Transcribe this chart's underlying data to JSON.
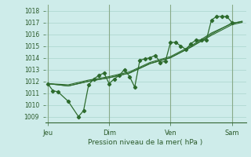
{
  "xlabel": "Pression niveau de la mer( hPa )",
  "background_color": "#ceecea",
  "grid_color": "#aad4cc",
  "line_color": "#2d6b2d",
  "vline_color": "#88aa88",
  "ylim": [
    1008.5,
    1018.5
  ],
  "yticks": [
    1009,
    1010,
    1011,
    1012,
    1013,
    1014,
    1015,
    1016,
    1017,
    1018
  ],
  "day_labels": [
    "Jeu",
    "Dim",
    "Ven",
    "Sam"
  ],
  "day_positions": [
    0,
    48,
    96,
    144
  ],
  "xlim": [
    -2,
    155
  ],
  "series": [
    [
      0,
      1011.8,
      4,
      1011.2,
      8,
      1011.1,
      16,
      1010.3,
      24,
      1009.0,
      28,
      1009.5,
      32,
      1011.7,
      36,
      1012.2,
      40,
      1012.5,
      44,
      1012.7,
      48,
      1011.8,
      52,
      1012.2,
      56,
      1012.5,
      60,
      1013.0,
      64,
      1012.4,
      68,
      1011.5,
      72,
      1013.8,
      76,
      1013.9,
      80,
      1014.0,
      84,
      1014.2,
      88,
      1013.6,
      92,
      1013.7,
      96,
      1015.3,
      100,
      1015.3,
      104,
      1015.0,
      108,
      1014.7,
      112,
      1015.2,
      116,
      1015.5,
      120,
      1015.5,
      124,
      1015.5,
      128,
      1017.2,
      132,
      1017.5,
      136,
      1017.5,
      140,
      1017.5,
      144,
      1017.0
    ],
    [
      0,
      1011.8,
      16,
      1011.6,
      32,
      1012.0,
      48,
      1012.3,
      64,
      1012.7,
      80,
      1013.5,
      96,
      1014.0,
      112,
      1014.9,
      128,
      1015.9,
      144,
      1016.8,
      152,
      1017.0
    ],
    [
      0,
      1011.8,
      16,
      1011.7,
      32,
      1012.1,
      48,
      1012.4,
      64,
      1012.8,
      80,
      1013.6,
      96,
      1014.1,
      112,
      1015.0,
      128,
      1016.1,
      144,
      1016.9,
      152,
      1017.1
    ],
    [
      0,
      1011.8,
      16,
      1011.6,
      32,
      1012.0,
      48,
      1012.3,
      64,
      1012.7,
      80,
      1013.5,
      96,
      1014.0,
      112,
      1014.9,
      128,
      1016.0,
      144,
      1016.95,
      152,
      1017.05
    ]
  ],
  "marker_series_idx": 0
}
